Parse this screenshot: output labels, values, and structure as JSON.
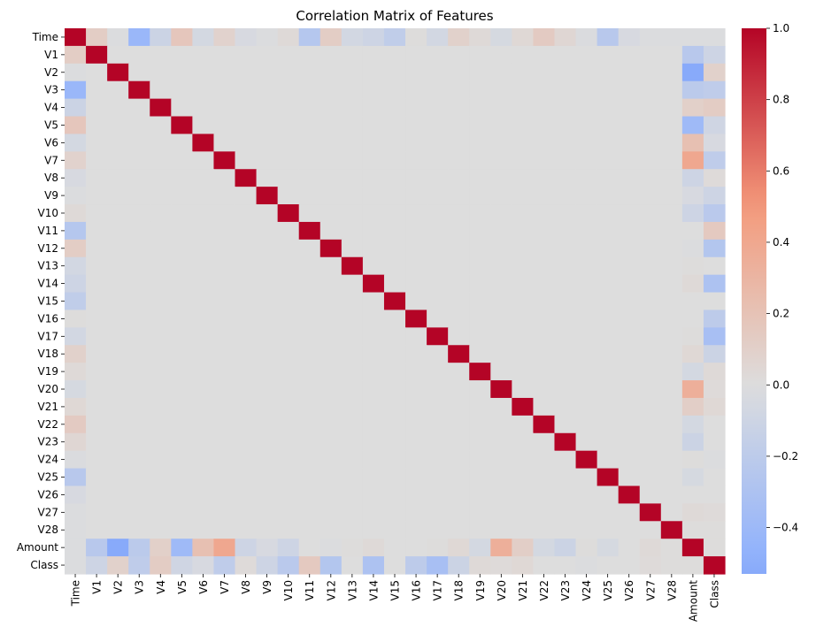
{
  "chart_data": {
    "type": "heatmap",
    "title": "Correlation Matrix of Features",
    "xlabel": "",
    "ylabel": "",
    "features": [
      "Time",
      "V1",
      "V2",
      "V3",
      "V4",
      "V5",
      "V6",
      "V7",
      "V8",
      "V9",
      "V10",
      "V11",
      "V12",
      "V13",
      "V14",
      "V15",
      "V16",
      "V17",
      "V18",
      "V19",
      "V20",
      "V21",
      "V22",
      "V23",
      "V24",
      "V25",
      "V26",
      "V27",
      "V28",
      "Amount",
      "Class"
    ],
    "row_time": [
      1.0,
      0.12,
      -0.01,
      -0.42,
      -0.11,
      0.17,
      -0.06,
      0.08,
      -0.04,
      -0.01,
      0.03,
      -0.25,
      0.12,
      -0.07,
      -0.1,
      -0.18,
      0.01,
      -0.07,
      0.09,
      0.03,
      -0.05,
      0.04,
      0.14,
      0.05,
      -0.02,
      -0.23,
      -0.04,
      -0.01,
      -0.01,
      -0.01,
      -0.01
    ],
    "row_amount": [
      -0.01,
      -0.23,
      -0.53,
      -0.21,
      0.1,
      -0.39,
      0.22,
      0.4,
      -0.1,
      -0.04,
      -0.1,
      0.0,
      -0.01,
      0.01,
      0.03,
      -0.0,
      -0.0,
      0.01,
      0.04,
      -0.06,
      0.34,
      0.11,
      -0.06,
      -0.11,
      0.01,
      -0.05,
      -0.0,
      0.03,
      0.01,
      1.0,
      0.01
    ],
    "row_class": [
      -0.01,
      -0.1,
      0.09,
      -0.19,
      0.13,
      -0.09,
      -0.04,
      -0.19,
      0.02,
      -0.1,
      -0.22,
      0.15,
      -0.26,
      -0.0,
      -0.3,
      -0.0,
      -0.2,
      -0.33,
      -0.11,
      0.03,
      0.02,
      0.04,
      0.0,
      -0.0,
      -0.01,
      0.0,
      0.0,
      0.02,
      0.01,
      0.01,
      1.0
    ],
    "colorbar": {
      "min": -0.53,
      "max": 1.0,
      "center": 0.0,
      "colormap": "coolwarm",
      "ticks": [
        -0.4,
        -0.2,
        0.0,
        0.2,
        0.4,
        0.6,
        0.8,
        1.0
      ],
      "tick_labels": [
        "−0.4",
        "−0.2",
        "0.0",
        "0.2",
        "0.4",
        "0.6",
        "0.8",
        "1.0"
      ]
    },
    "grid": false,
    "legend": "colorbar-right"
  }
}
